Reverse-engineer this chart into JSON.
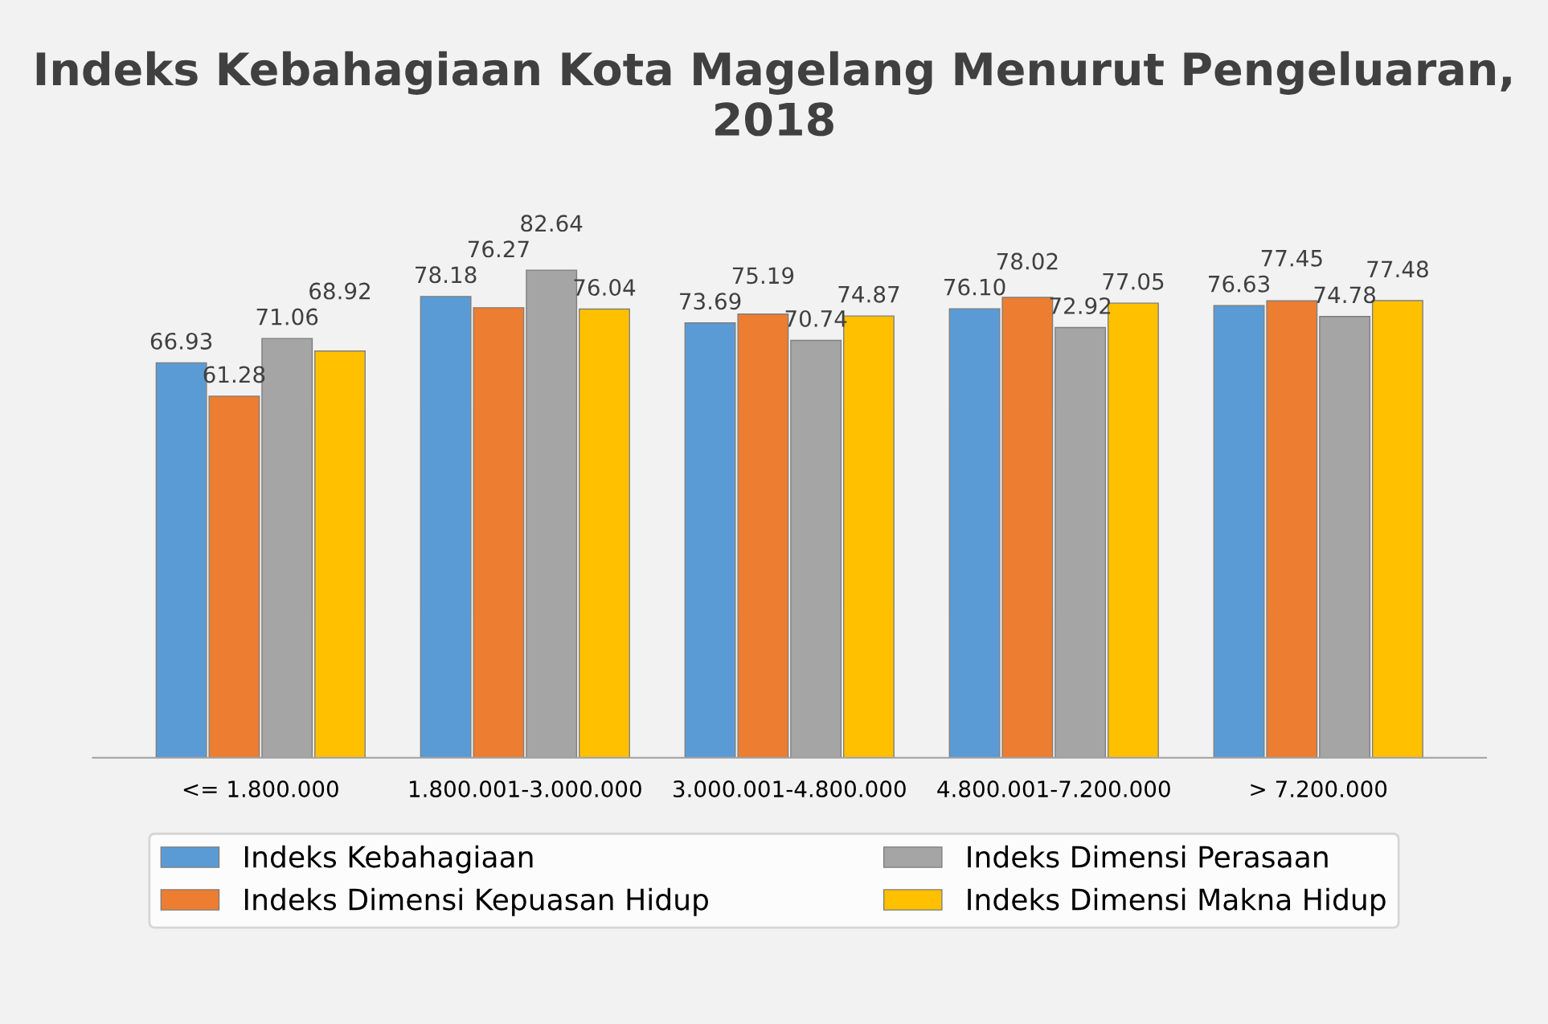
{
  "chart_data": {
    "type": "bar",
    "title": "Indeks Kebahagiaan Kota Magelang Menurut Pengeluaran, 2018",
    "categories": [
      "<= 1.800.000",
      "1.800.001-3.000.000",
      "3.000.001-4.800.000",
      "4.800.001-7.200.000",
      "> 7.200.000"
    ],
    "series": [
      {
        "name": "Indeks Kebahagiaan",
        "color": "#5b9bd5",
        "values": [
          66.93,
          78.18,
          73.69,
          76.1,
          76.63
        ],
        "value_labels": [
          "66.93",
          "78.18",
          "73.69",
          "76.10",
          "76.63"
        ]
      },
      {
        "name": "Indeks Dimensi Kepuasan Hidup",
        "color": "#ed7d31",
        "values": [
          61.28,
          76.27,
          75.19,
          78.02,
          77.45
        ],
        "value_labels": [
          "61.28",
          "76.27",
          "75.19",
          "78.02",
          "77.45"
        ]
      },
      {
        "name": "Indeks Dimensi Perasaan",
        "color": "#a5a5a5",
        "values": [
          71.06,
          82.64,
          70.74,
          72.92,
          74.78
        ],
        "value_labels": [
          "71.06",
          "82.64",
          "70.74",
          "72.92",
          "74.78"
        ]
      },
      {
        "name": "Indeks Dimensi Makna Hidup",
        "color": "#ffc000",
        "values": [
          68.92,
          76.04,
          74.87,
          77.05,
          77.48
        ],
        "value_labels": [
          "68.92",
          "76.04",
          "74.87",
          "77.05",
          "77.48"
        ]
      }
    ],
    "legend": "bottom",
    "grid": false
  }
}
